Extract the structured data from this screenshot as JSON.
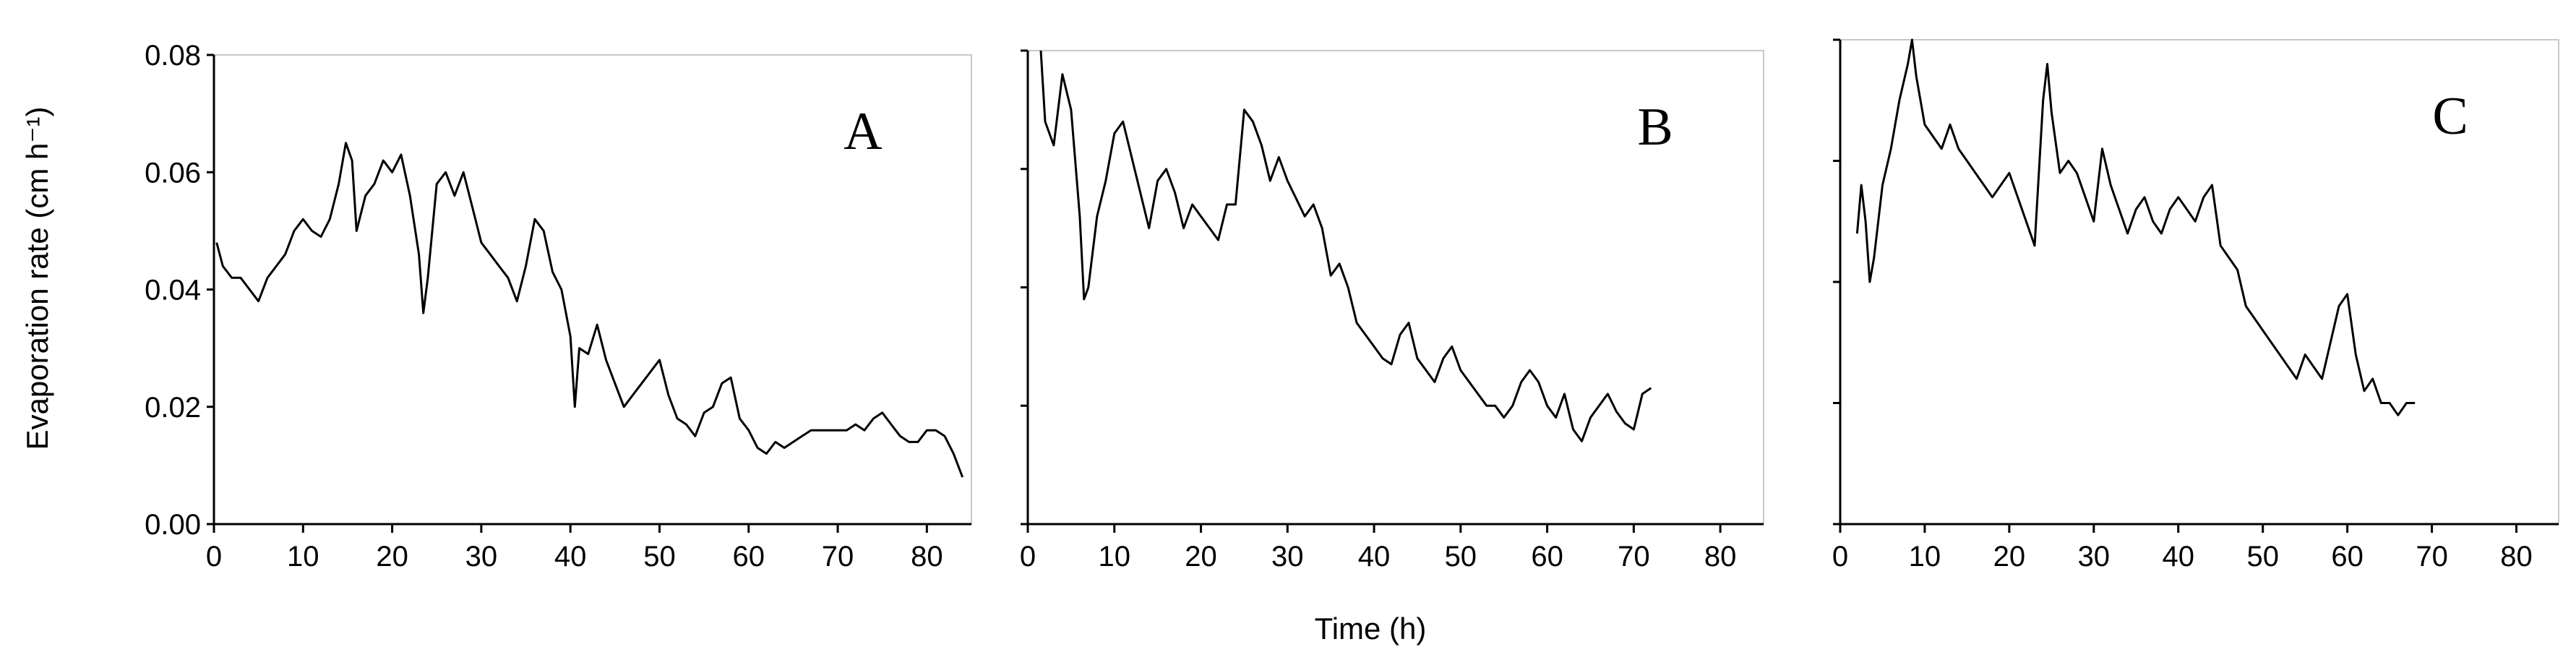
{
  "chart_data": [
    {
      "type": "line",
      "panel_label": "A",
      "ylabel": "Evaporation rate (cm h⁻¹)",
      "xlabel": "",
      "xlim": [
        0,
        85
      ],
      "ylim": [
        0,
        0.08
      ],
      "xticks": [
        0,
        10,
        20,
        30,
        40,
        50,
        60,
        70,
        80
      ],
      "yticks": [
        0.0,
        0.02,
        0.04,
        0.06,
        0.08
      ],
      "ytick_labels": [
        "0.00",
        "0.02",
        "0.04",
        "0.06",
        "0.08"
      ],
      "series": [
        {
          "x": [
            0.3,
            1,
            2,
            3,
            4,
            5,
            6,
            7,
            8,
            9,
            10,
            11,
            12,
            13,
            14,
            14.8,
            15.5,
            16,
            17,
            18,
            19,
            20,
            21,
            22,
            23,
            23.5,
            24,
            25,
            26,
            27,
            28,
            29,
            30,
            31,
            32,
            33,
            34,
            35,
            36,
            37,
            38,
            39,
            40,
            40.5,
            41,
            42,
            43,
            44,
            45,
            46,
            47,
            48,
            49,
            50,
            51,
            52,
            53,
            54,
            55,
            56,
            57,
            58,
            59,
            60,
            61,
            62,
            63,
            64,
            65,
            66,
            67,
            68,
            69,
            70,
            71,
            72,
            73,
            74,
            75,
            76,
            77,
            78,
            79,
            80,
            81,
            82,
            83,
            84
          ],
          "y": [
            0.048,
            0.044,
            0.042,
            0.042,
            0.04,
            0.038,
            0.042,
            0.044,
            0.046,
            0.05,
            0.052,
            0.05,
            0.049,
            0.052,
            0.058,
            0.065,
            0.062,
            0.05,
            0.056,
            0.058,
            0.062,
            0.06,
            0.063,
            0.056,
            0.046,
            0.036,
            0.042,
            0.058,
            0.06,
            0.056,
            0.06,
            0.054,
            0.048,
            0.046,
            0.044,
            0.042,
            0.038,
            0.044,
            0.052,
            0.05,
            0.043,
            0.04,
            0.032,
            0.02,
            0.03,
            0.029,
            0.034,
            0.028,
            0.024,
            0.02,
            0.022,
            0.024,
            0.026,
            0.028,
            0.022,
            0.018,
            0.017,
            0.015,
            0.019,
            0.02,
            0.024,
            0.025,
            0.018,
            0.016,
            0.013,
            0.012,
            0.014,
            0.013,
            0.014,
            0.015,
            0.016,
            0.016,
            0.016,
            0.016,
            0.016,
            0.017,
            0.016,
            0.018,
            0.019,
            0.017,
            0.015,
            0.014,
            0.014,
            0.016,
            0.016,
            0.015,
            0.012,
            0.008
          ]
        }
      ]
    },
    {
      "type": "line",
      "panel_label": "B",
      "xlabel": "Time (h)",
      "ylabel": "",
      "xlim": [
        0,
        85
      ],
      "ylim": [
        0,
        0.08
      ],
      "xticks": [
        0,
        10,
        20,
        30,
        40,
        50,
        60,
        70,
        80
      ],
      "yticks": [
        0.0,
        0.02,
        0.04,
        0.06,
        0.08
      ],
      "series": [
        {
          "x": [
            1.5,
            2,
            3,
            4,
            5,
            6,
            6.5,
            7,
            8,
            9,
            10,
            11,
            12,
            13,
            14,
            15,
            16,
            17,
            18,
            19,
            20,
            21,
            22,
            23,
            24,
            25,
            26,
            27,
            28,
            29,
            30,
            31,
            32,
            33,
            34,
            35,
            36,
            37,
            38,
            39,
            40,
            41,
            42,
            43,
            44,
            45,
            46,
            47,
            48,
            49,
            50,
            51,
            52,
            53,
            54,
            55,
            56,
            57,
            58,
            59,
            60,
            61,
            62,
            63,
            64,
            65,
            66,
            67,
            68,
            69,
            70,
            71,
            72
          ],
          "y": [
            0.08,
            0.068,
            0.064,
            0.076,
            0.07,
            0.052,
            0.038,
            0.04,
            0.052,
            0.058,
            0.066,
            0.068,
            0.062,
            0.056,
            0.05,
            0.058,
            0.06,
            0.056,
            0.05,
            0.054,
            0.052,
            0.05,
            0.048,
            0.054,
            0.054,
            0.07,
            0.068,
            0.064,
            0.058,
            0.062,
            0.058,
            0.055,
            0.052,
            0.054,
            0.05,
            0.042,
            0.044,
            0.04,
            0.034,
            0.032,
            0.03,
            0.028,
            0.027,
            0.032,
            0.034,
            0.028,
            0.026,
            0.024,
            0.028,
            0.03,
            0.026,
            0.024,
            0.022,
            0.02,
            0.02,
            0.018,
            0.02,
            0.024,
            0.026,
            0.024,
            0.02,
            0.018,
            0.022,
            0.016,
            0.014,
            0.018,
            0.02,
            0.022,
            0.019,
            0.017,
            0.016,
            0.022,
            0.023
          ]
        }
      ]
    },
    {
      "type": "line",
      "panel_label": "C",
      "xlabel": "",
      "ylabel": "",
      "xlim": [
        0,
        85
      ],
      "ylim": [
        0,
        0.08
      ],
      "xticks": [
        0,
        10,
        20,
        30,
        40,
        50,
        60,
        70,
        80
      ],
      "yticks": [
        0.0,
        0.02,
        0.04,
        0.06,
        0.08
      ],
      "series": [
        {
          "x": [
            2,
            2.5,
            3,
            3.5,
            4,
            5,
            6,
            7,
            8,
            8.5,
            9,
            10,
            11,
            12,
            13,
            14,
            15,
            16,
            17,
            18,
            19,
            20,
            21,
            22,
            23,
            24,
            24.5,
            25,
            26,
            27,
            28,
            29,
            30,
            31,
            32,
            33,
            34,
            35,
            36,
            37,
            38,
            39,
            40,
            41,
            42,
            43,
            44,
            45,
            46,
            47,
            48,
            49,
            50,
            51,
            52,
            53,
            54,
            55,
            56,
            57,
            58,
            59,
            60,
            61,
            62,
            63,
            64,
            65,
            66,
            67,
            68
          ],
          "y": [
            0.048,
            0.056,
            0.05,
            0.04,
            0.044,
            0.056,
            0.062,
            0.07,
            0.076,
            0.08,
            0.074,
            0.066,
            0.064,
            0.062,
            0.066,
            0.062,
            0.06,
            0.058,
            0.056,
            0.054,
            0.056,
            0.058,
            0.054,
            0.05,
            0.046,
            0.07,
            0.076,
            0.068,
            0.058,
            0.06,
            0.058,
            0.054,
            0.05,
            0.062,
            0.056,
            0.052,
            0.048,
            0.052,
            0.054,
            0.05,
            0.048,
            0.052,
            0.054,
            0.052,
            0.05,
            0.054,
            0.056,
            0.046,
            0.044,
            0.042,
            0.036,
            0.034,
            0.032,
            0.03,
            0.028,
            0.026,
            0.024,
            0.028,
            0.026,
            0.024,
            0.03,
            0.036,
            0.038,
            0.028,
            0.022,
            0.024,
            0.02,
            0.02,
            0.018,
            0.02,
            0.02
          ]
        }
      ]
    }
  ]
}
